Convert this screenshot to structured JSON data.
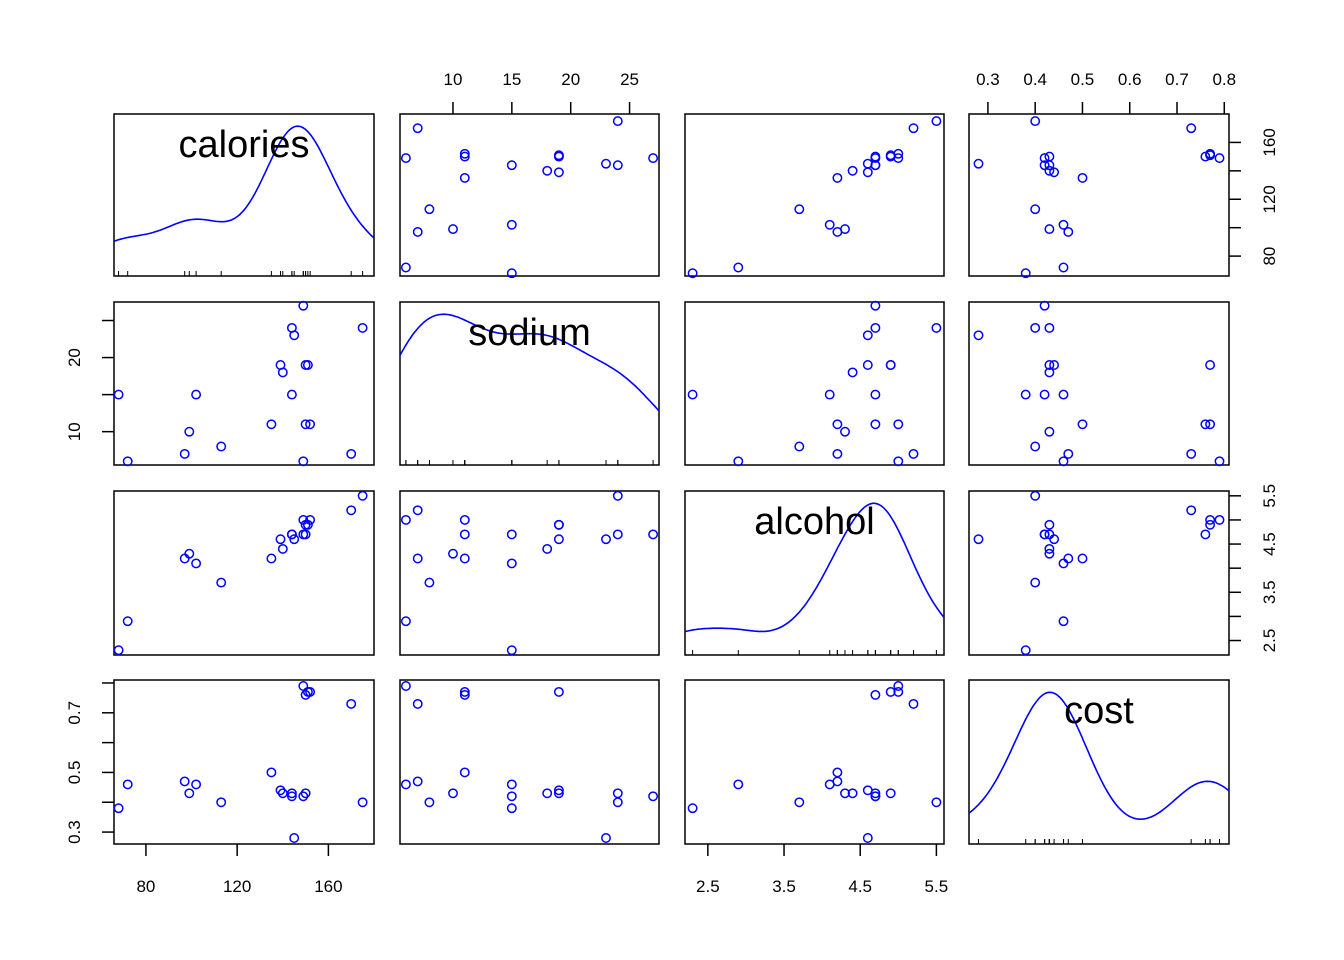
{
  "chart_data": {
    "type": "scatter",
    "title": "",
    "variables": [
      "calories",
      "sodium",
      "alcohol",
      "cost"
    ],
    "point_color": "#0000ff",
    "line_color": "#0000ff",
    "diagonal": "density",
    "ranges": {
      "calories": [
        66,
        180
      ],
      "sodium": [
        5.5,
        27.5
      ],
      "alcohol": [
        2.2,
        5.6
      ],
      "cost": [
        0.26,
        0.81
      ]
    },
    "ticks": {
      "calories": [
        "80",
        "120",
        "160"
      ],
      "sodium": [
        "10",
        "15",
        "20",
        "25"
      ],
      "alcohol": [
        "2.5",
        "3.5",
        "4.5",
        "5.5"
      ],
      "cost": [
        "0.3",
        "0.4",
        "0.5",
        "0.6",
        "0.7",
        "0.8"
      ]
    },
    "tick_values": {
      "calories": [
        80,
        120,
        160
      ],
      "sodium": [
        10,
        15,
        20,
        25
      ],
      "alcohol": [
        2.5,
        3.5,
        4.5,
        5.5
      ],
      "cost": [
        0.3,
        0.4,
        0.5,
        0.6,
        0.7,
        0.8
      ]
    },
    "left_ticks": {
      "sodium": [
        "10",
        "20"
      ],
      "cost": [
        "0.3",
        "0.5",
        "0.7"
      ]
    },
    "left_tick_values": {
      "sodium": [
        10,
        15,
        20,
        25
      ],
      "cost": [
        0.3,
        0.4,
        0.5,
        0.6,
        0.7,
        0.8
      ]
    },
    "right_ticks": {
      "calories": [
        "80",
        "120",
        "160"
      ],
      "alcohol": [
        "2.5",
        "3.5",
        "4.5",
        "5.5"
      ]
    },
    "right_tick_values": {
      "calories": [
        80,
        100,
        120,
        140,
        160
      ],
      "alcohol": [
        2.5,
        3.0,
        3.5,
        4.0,
        4.5,
        5.0,
        5.5
      ]
    },
    "points": [
      {
        "calories": 68,
        "sodium": 15,
        "alcohol": 2.3,
        "cost": 0.38
      },
      {
        "calories": 72,
        "sodium": 6,
        "alcohol": 2.9,
        "cost": 0.46
      },
      {
        "calories": 97,
        "sodium": 7,
        "alcohol": 4.2,
        "cost": 0.47
      },
      {
        "calories": 99,
        "sodium": 10,
        "alcohol": 4.3,
        "cost": 0.43
      },
      {
        "calories": 102,
        "sodium": 15,
        "alcohol": 4.1,
        "cost": 0.46
      },
      {
        "calories": 113,
        "sodium": 8,
        "alcohol": 3.7,
        "cost": 0.4
      },
      {
        "calories": 135,
        "sodium": 11,
        "alcohol": 4.2,
        "cost": 0.5
      },
      {
        "calories": 140,
        "sodium": 18,
        "alcohol": 4.4,
        "cost": 0.43
      },
      {
        "calories": 139,
        "sodium": 19,
        "alcohol": 4.6,
        "cost": 0.44
      },
      {
        "calories": 144,
        "sodium": 24,
        "alcohol": 4.7,
        "cost": 0.43
      },
      {
        "calories": 145,
        "sodium": 23,
        "alcohol": 4.6,
        "cost": 0.28
      },
      {
        "calories": 144,
        "sodium": 15,
        "alcohol": 4.7,
        "cost": 0.42
      },
      {
        "calories": 149,
        "sodium": 6,
        "alcohol": 5.0,
        "cost": 0.79
      },
      {
        "calories": 149,
        "sodium": 27,
        "alcohol": 4.7,
        "cost": 0.42
      },
      {
        "calories": 150,
        "sodium": 19,
        "alcohol": 4.9,
        "cost": 0.43
      },
      {
        "calories": 151,
        "sodium": 19,
        "alcohol": 4.9,
        "cost": 0.77
      },
      {
        "calories": 152,
        "sodium": 11,
        "alcohol": 5.0,
        "cost": 0.77
      },
      {
        "calories": 150,
        "sodium": 11,
        "alcohol": 4.7,
        "cost": 0.76
      },
      {
        "calories": 170,
        "sodium": 7,
        "alcohol": 5.2,
        "cost": 0.73
      },
      {
        "calories": 175,
        "sodium": 24,
        "alcohol": 5.5,
        "cost": 0.4
      }
    ]
  }
}
